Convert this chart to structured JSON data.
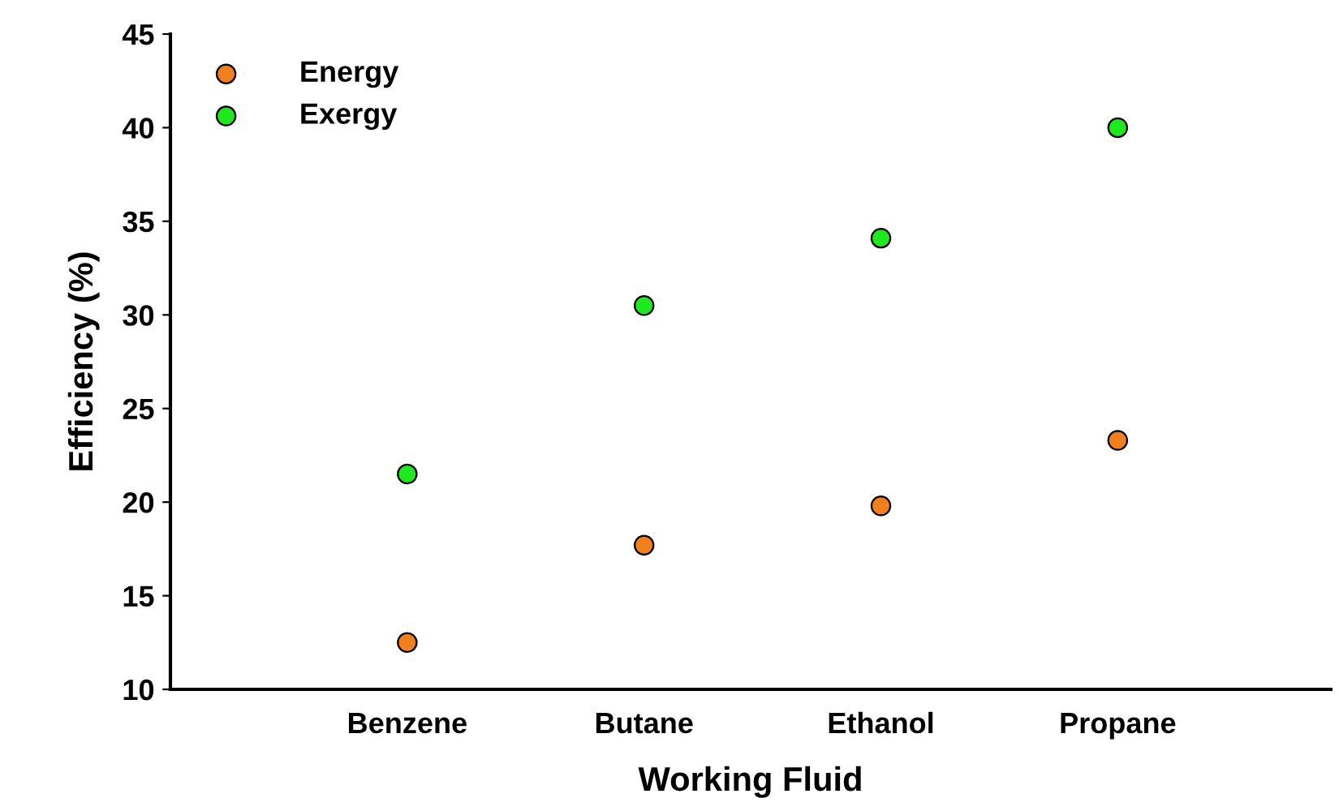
{
  "chart_data": {
    "type": "scatter",
    "xlabel": "Working Fluid",
    "ylabel": "Efficiency (%)",
    "categories": [
      "Benzene",
      "Butane",
      "Ethanol",
      "Propane"
    ],
    "series": [
      {
        "name": "Energy",
        "color": "#f07f1e",
        "values": [
          12.5,
          17.7,
          19.8,
          23.3
        ]
      },
      {
        "name": "Exergy",
        "color": "#1ee81e",
        "values": [
          21.5,
          30.5,
          34.1,
          40.0
        ]
      }
    ],
    "ylim": [
      10,
      45
    ],
    "yticks": [
      10,
      15,
      20,
      25,
      30,
      35,
      40,
      45
    ],
    "marker": "circle",
    "legend": "top left",
    "grid": false
  }
}
